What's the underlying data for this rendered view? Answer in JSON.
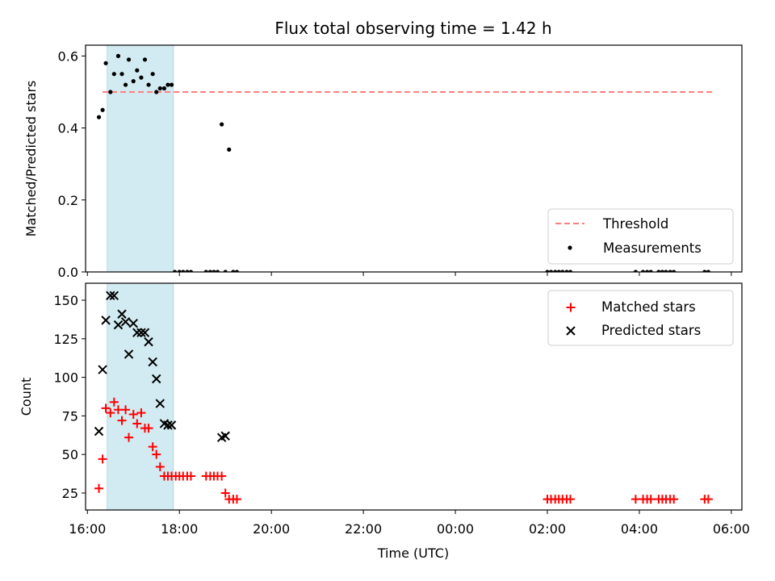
{
  "chart_data": {
    "type": "scatter",
    "title": "Flux total observing time = 1.42 h",
    "xlabel": "Time (UTC)",
    "xlim": [
      15.96,
      30.23
    ],
    "x_tick_values": [
      16,
      18,
      20,
      22,
      24,
      26,
      28,
      30
    ],
    "x_tick_labels": [
      "16:00",
      "18:00",
      "20:00",
      "22:00",
      "00:00",
      "02:00",
      "04:00",
      "06:00"
    ],
    "highlight_span": {
      "start": 16.43,
      "end": 17.87,
      "color": "#add8e6"
    },
    "panels": [
      {
        "ylabel": "Matched/Predicted stars",
        "ylim": [
          0,
          0.63
        ],
        "y_ticks": [
          0.0,
          0.2,
          0.4,
          0.6
        ],
        "y_tick_labels": [
          "0.0",
          "0.2",
          "0.4",
          "0.6"
        ],
        "legend_position": "lower-right",
        "threshold": {
          "name": "Threshold",
          "value": 0.5,
          "x_start": 16.33,
          "x_end": 29.65,
          "color": "#ff7f7f"
        },
        "measurements": {
          "name": "Measurements",
          "color": "#000000",
          "x": [
            16.25,
            16.33,
            16.4,
            16.5,
            16.58,
            16.67,
            16.75,
            16.83,
            16.9,
            17.0,
            17.08,
            17.17,
            17.25,
            17.33,
            17.42,
            17.5,
            17.58,
            17.67,
            17.75,
            17.83,
            17.9,
            18.0,
            18.08,
            18.17,
            18.25,
            18.58,
            18.67,
            18.75,
            18.83,
            18.92,
            19.0,
            19.08,
            19.17,
            19.25,
            26.0,
            26.08,
            26.17,
            26.25,
            26.33,
            26.42,
            26.5,
            27.92,
            28.08,
            28.17,
            28.25,
            28.42,
            28.5,
            28.58,
            28.67,
            28.75,
            29.42,
            29.5
          ],
          "y": [
            0.43,
            0.45,
            0.58,
            0.5,
            0.55,
            0.6,
            0.55,
            0.52,
            0.59,
            0.53,
            0.56,
            0.54,
            0.59,
            0.52,
            0.55,
            0.5,
            0.51,
            0.51,
            0.52,
            0.52,
            0.0,
            0.0,
            0.0,
            0.0,
            0.0,
            0.0,
            0.0,
            0.0,
            0.0,
            0.41,
            0.0,
            0.34,
            0.0,
            0.0,
            0.0,
            0.0,
            0.0,
            0.0,
            0.0,
            0.0,
            0.0,
            0.0,
            0.0,
            0.0,
            0.0,
            0.0,
            0.0,
            0.0,
            0.0,
            0.0,
            0.0,
            0.0
          ]
        }
      },
      {
        "ylabel": "Count",
        "ylim": [
          14,
          161
        ],
        "y_ticks": [
          25,
          50,
          75,
          100,
          125,
          150
        ],
        "y_tick_labels": [
          "25",
          "50",
          "75",
          "100",
          "125",
          "150"
        ],
        "legend_position": "upper-right",
        "series": [
          {
            "name": "Matched stars",
            "marker": "plus",
            "color": "#ff0000",
            "x": [
              16.25,
              16.33,
              16.4,
              16.5,
              16.58,
              16.67,
              16.75,
              16.83,
              16.9,
              17.0,
              17.08,
              17.17,
              17.25,
              17.33,
              17.42,
              17.5,
              17.58,
              17.67,
              17.75,
              17.83,
              17.92,
              18.0,
              18.08,
              18.17,
              18.25,
              18.58,
              18.67,
              18.75,
              18.83,
              18.92,
              19.0,
              19.08,
              19.17,
              19.25,
              26.0,
              26.08,
              26.17,
              26.25,
              26.33,
              26.42,
              26.5,
              27.92,
              28.08,
              28.17,
              28.25,
              28.42,
              28.5,
              28.58,
              28.67,
              28.75,
              29.42,
              29.5
            ],
            "y": [
              28,
              47,
              80,
              77,
              84,
              79,
              72,
              79,
              61,
              76,
              70,
              77,
              67,
              67,
              55,
              50,
              42,
              36,
              36,
              36,
              36,
              36,
              36,
              36,
              36,
              36,
              36,
              36,
              36,
              36,
              25,
              21,
              21,
              21,
              21,
              21,
              21,
              21,
              21,
              21,
              21,
              21,
              21,
              21,
              21,
              21,
              21,
              21,
              21,
              21,
              21,
              21
            ]
          },
          {
            "name": "Predicted stars",
            "marker": "x",
            "color": "#000000",
            "x": [
              16.25,
              16.33,
              16.4,
              16.5,
              16.58,
              16.67,
              16.75,
              16.83,
              16.9,
              17.0,
              17.08,
              17.17,
              17.25,
              17.33,
              17.42,
              17.5,
              17.58,
              17.67,
              17.75,
              17.83,
              18.92,
              19.0
            ],
            "y": [
              65,
              105,
              137,
              153,
              153,
              134,
              141,
              136,
              115,
              135,
              129,
              129,
              129,
              123,
              110,
              99,
              83,
              70,
              69,
              69,
              61,
              62
            ]
          }
        ]
      }
    ]
  }
}
